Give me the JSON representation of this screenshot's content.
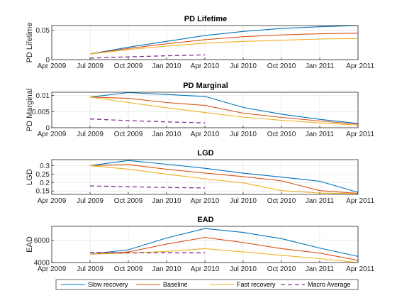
{
  "legend": {
    "entries": [
      {
        "name": "Slow recovery",
        "color": "#0072BD",
        "dash": "solid"
      },
      {
        "name": "Baseline",
        "color": "#D95319",
        "dash": "solid"
      },
      {
        "name": "Fast recovery",
        "color": "#EDB120",
        "dash": "solid"
      },
      {
        "name": "Macro Average",
        "color": "#7E2F8E",
        "dash": "dashed"
      }
    ],
    "placement": "bottom"
  },
  "chart_data": [
    {
      "type": "line",
      "title": "PD Lifetime",
      "ylabel": "PD Lifetime",
      "xlabel": "",
      "xlim": [
        "Apr 2009",
        "Apr 2011"
      ],
      "x_ticks": [
        "Apr 2009",
        "Jul 2009",
        "Oct 2009",
        "Jan 2010",
        "Apr 2010",
        "Jul 2010",
        "Oct 2010",
        "Jan 2011",
        "Apr 2011"
      ],
      "ylim": [
        0,
        0.058
      ],
      "y_ticks": [
        0,
        0.05
      ],
      "y_tick_labels": [
        "0",
        "0.05"
      ],
      "grid": true,
      "x": [
        "Jul 2009",
        "Oct 2009",
        "Jan 2010",
        "Apr 2010",
        "Jul 2010",
        "Oct 2010",
        "Jan 2011",
        "Apr 2011"
      ],
      "series": [
        {
          "name": "Slow recovery",
          "values": [
            0.0095,
            0.021,
            0.031,
            0.041,
            0.048,
            0.053,
            0.056,
            0.058
          ]
        },
        {
          "name": "Baseline",
          "values": [
            0.0095,
            0.019,
            0.027,
            0.034,
            0.039,
            0.042,
            0.044,
            0.045
          ]
        },
        {
          "name": "Fast recovery",
          "values": [
            0.0095,
            0.017,
            0.023,
            0.028,
            0.031,
            0.033,
            0.035,
            0.036
          ]
        },
        {
          "name": "Macro Average",
          "x": [
            "Jul 2009",
            "Oct 2009",
            "Jan 2010",
            "Apr 2010"
          ],
          "values": [
            0.0025,
            0.0047,
            0.0065,
            0.0081
          ]
        }
      ]
    },
    {
      "type": "line",
      "title": "PD Marginal",
      "ylabel": "PD Marginal",
      "xlabel": "",
      "xlim": [
        "Apr 2009",
        "Apr 2011"
      ],
      "x_ticks": [
        "Apr 2009",
        "Jul 2009",
        "Oct 2009",
        "Jan 2010",
        "Apr 2010",
        "Jul 2010",
        "Oct 2010",
        "Jan 2011",
        "Apr 2011"
      ],
      "ylim": [
        0,
        0.011
      ],
      "y_ticks": [
        0,
        0.005,
        0.01
      ],
      "y_tick_labels": [
        "0",
        "0.005",
        "0.01"
      ],
      "grid": true,
      "x": [
        "Jul 2009",
        "Oct 2009",
        "Jan 2010",
        "Apr 2010",
        "Jul 2010",
        "Oct 2010",
        "Jan 2011",
        "Apr 2011"
      ],
      "series": [
        {
          "name": "Slow recovery",
          "values": [
            0.0095,
            0.0109,
            0.0103,
            0.0097,
            0.0063,
            0.0042,
            0.0026,
            0.0013
          ]
        },
        {
          "name": "Baseline",
          "values": [
            0.0095,
            0.0091,
            0.0078,
            0.0069,
            0.0045,
            0.0032,
            0.0021,
            0.0011
          ]
        },
        {
          "name": "Fast recovery",
          "values": [
            0.0095,
            0.0078,
            0.0062,
            0.0047,
            0.0033,
            0.0023,
            0.0015,
            0.0008
          ]
        },
        {
          "name": "Macro Average",
          "x": [
            "Jul 2009",
            "Oct 2009",
            "Jan 2010",
            "Apr 2010"
          ],
          "values": [
            0.0027,
            0.0022,
            0.0018,
            0.0015
          ]
        }
      ]
    },
    {
      "type": "line",
      "title": "LGD",
      "ylabel": "LGD",
      "xlabel": "",
      "xlim": [
        "Apr 2009",
        "Apr 2011"
      ],
      "x_ticks": [
        "Apr 2009",
        "Jul 2009",
        "Oct 2009",
        "Jan 2010",
        "Apr 2010",
        "Jul 2010",
        "Oct 2010",
        "Jan 2011",
        "Apr 2011"
      ],
      "ylim": [
        0.13,
        0.335
      ],
      "y_ticks": [
        0.15,
        0.2,
        0.25,
        0.3
      ],
      "y_tick_labels": [
        "0.15",
        "0.2",
        "0.25",
        "0.3"
      ],
      "grid": true,
      "x": [
        "Jul 2009",
        "Oct 2009",
        "Jan 2010",
        "Apr 2010",
        "Jul 2010",
        "Oct 2010",
        "Jan 2011",
        "Apr 2011"
      ],
      "series": [
        {
          "name": "Slow recovery",
          "values": [
            0.3,
            0.33,
            0.308,
            0.284,
            0.255,
            0.232,
            0.208,
            0.142
          ]
        },
        {
          "name": "Baseline",
          "values": [
            0.3,
            0.306,
            0.278,
            0.256,
            0.235,
            0.21,
            0.152,
            0.136
          ]
        },
        {
          "name": "Fast recovery",
          "values": [
            0.3,
            0.279,
            0.249,
            0.222,
            0.198,
            0.152,
            0.138,
            0.134
          ]
        },
        {
          "name": "Macro Average",
          "x": [
            "Jul 2009",
            "Oct 2009",
            "Jan 2010",
            "Apr 2010"
          ],
          "values": [
            0.18,
            0.175,
            0.171,
            0.168
          ]
        }
      ]
    },
    {
      "type": "line",
      "title": "EAD",
      "ylabel": "EAD",
      "xlabel": "",
      "xlim": [
        "Apr 2009",
        "Apr 2011"
      ],
      "x_ticks": [
        "Apr 2009",
        "Jul 2009",
        "Oct 2009",
        "Jan 2010",
        "Apr 2010",
        "Jul 2010",
        "Oct 2010",
        "Jan 2011",
        "Apr 2011"
      ],
      "ylim": [
        4000,
        7250
      ],
      "y_ticks": [
        4000,
        6000
      ],
      "y_tick_labels": [
        "4000",
        "6000"
      ],
      "grid": true,
      "x": [
        "Jul 2009",
        "Oct 2009",
        "Jan 2010",
        "Apr 2010",
        "Jul 2010",
        "Oct 2010",
        "Jan 2011",
        "Apr 2011"
      ],
      "series": [
        {
          "name": "Slow recovery",
          "values": [
            4750,
            5150,
            6200,
            7050,
            6700,
            6150,
            5300,
            4550
          ]
        },
        {
          "name": "Baseline",
          "values": [
            4750,
            4950,
            5650,
            6250,
            5800,
            5250,
            4850,
            4200
          ]
        },
        {
          "name": "Fast recovery",
          "values": [
            4750,
            4850,
            5000,
            5250,
            4950,
            4650,
            4350,
            4000
          ]
        },
        {
          "name": "Macro Average",
          "x": [
            "Jul 2009",
            "Oct 2009",
            "Jan 2010",
            "Apr 2010"
          ],
          "values": [
            4900,
            4880,
            4870,
            4870
          ]
        }
      ]
    }
  ]
}
